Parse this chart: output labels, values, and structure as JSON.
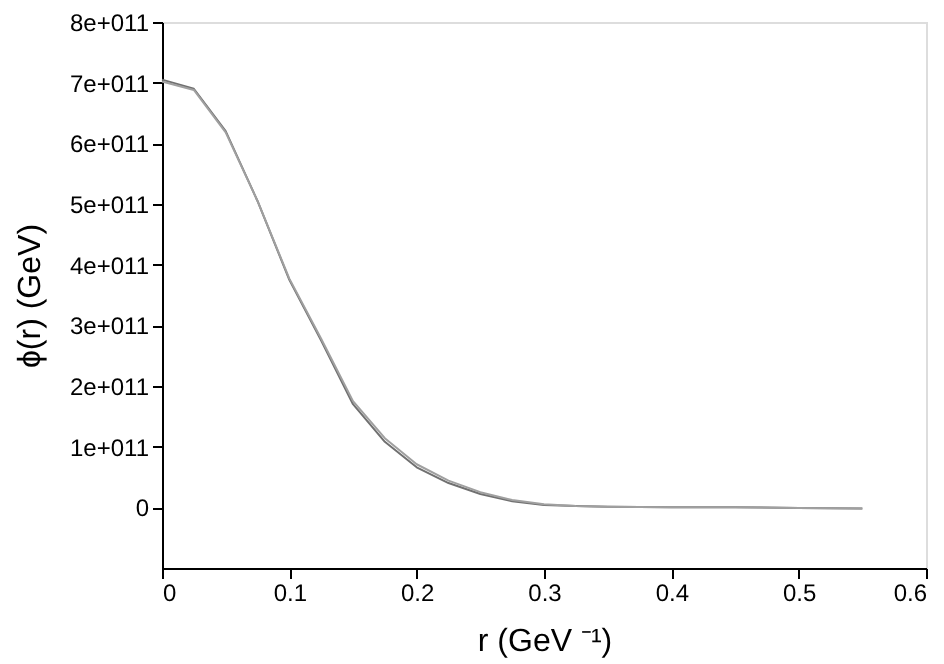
{
  "chart_data": {
    "type": "line",
    "xlabel": "r (GeV ⁻¹)",
    "ylabel": "ϕ(r) (GeV)",
    "x": [
      0,
      0.025,
      0.05,
      0.075,
      0.1,
      0.125,
      0.15,
      0.175,
      0.2,
      0.225,
      0.25,
      0.275,
      0.3,
      0.325,
      0.35,
      0.4,
      0.45,
      0.5,
      0.55
    ],
    "series": [
      {
        "color": "#707070",
        "values": [
          705000000000,
          690000000000,
          620000000000,
          505000000000,
          375000000000,
          275000000000,
          170000000000,
          108000000000,
          66000000000,
          40000000000,
          22000000000,
          10000000000,
          4000000000,
          2000000000,
          1000000000,
          0,
          0,
          -1000000000,
          -2000000000
        ]
      },
      {
        "color": "#a0a0a0",
        "values": [
          702000000000,
          688000000000,
          618000000000,
          505000000000,
          377000000000,
          278000000000,
          175000000000,
          114000000000,
          71000000000,
          44000000000,
          25000000000,
          12000000000,
          5000000000,
          2000000000,
          1000000000,
          0,
          0,
          -1000000000,
          -2000000000
        ]
      }
    ],
    "xlim": [
      0,
      0.6
    ],
    "xticks": [
      0,
      0.1,
      0.2,
      0.3,
      0.4,
      0.5,
      0.6
    ],
    "ylim": [
      -100000000000,
      800000000000
    ],
    "yticks": [
      {
        "value": 0,
        "label": "0"
      },
      {
        "value": 100000000000,
        "label": "1e+011"
      },
      {
        "value": 200000000000,
        "label": "2e+011"
      },
      {
        "value": 300000000000,
        "label": "3e+011"
      },
      {
        "value": 400000000000,
        "label": "4e+011"
      },
      {
        "value": 500000000000,
        "label": "5e+011"
      },
      {
        "value": 600000000000,
        "label": "6e+011"
      },
      {
        "value": 700000000000,
        "label": "7e+011"
      },
      {
        "value": 800000000000,
        "label": "8e+011"
      }
    ],
    "grid": false,
    "marker": "none",
    "line_style": "solid"
  }
}
